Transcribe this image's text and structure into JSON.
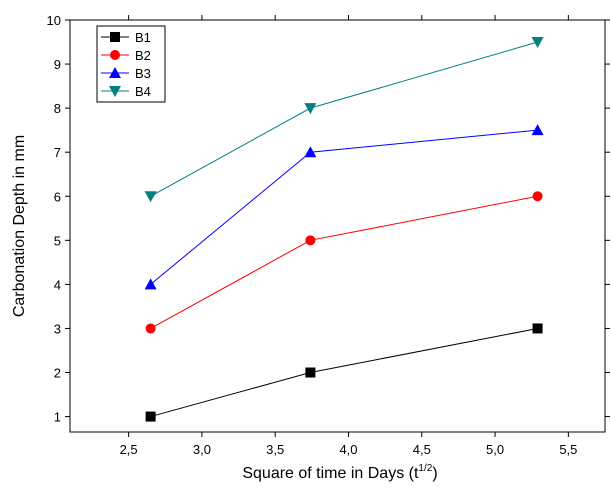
{
  "chart_data": {
    "type": "line",
    "xlabel": "Square of time in Days (t",
    "xlabel_sup": "1/2",
    "xlabel_end": ")",
    "ylabel": "Carbonation Depth in mm",
    "x": [
      2.65,
      3.74,
      5.29
    ],
    "series": [
      {
        "name": "B1",
        "color": "#000000",
        "marker": "square",
        "values": [
          1,
          2,
          3
        ]
      },
      {
        "name": "B2",
        "color": "#ff0000",
        "marker": "circle",
        "values": [
          3,
          5,
          6
        ]
      },
      {
        "name": "B3",
        "color": "#0000ff",
        "marker": "triangle-up",
        "values": [
          4,
          7,
          7.5
        ]
      },
      {
        "name": "B4",
        "color": "#008080",
        "marker": "triangle-down",
        "values": [
          6,
          8,
          9.5
        ]
      }
    ],
    "xlim": [
      2.1,
      5.75
    ],
    "ylim": [
      0.65,
      10
    ],
    "xticks": [
      {
        "value": 2.5,
        "label": "2,5"
      },
      {
        "value": 3.0,
        "label": "3,0"
      },
      {
        "value": 3.5,
        "label": "3,5"
      },
      {
        "value": 4.0,
        "label": "4,0"
      },
      {
        "value": 4.5,
        "label": "4,5"
      },
      {
        "value": 5.0,
        "label": "5,0"
      },
      {
        "value": 5.5,
        "label": "5,5"
      }
    ],
    "yticks": [
      1,
      2,
      3,
      4,
      5,
      6,
      7,
      8,
      9,
      10
    ],
    "legend": "upper-left"
  }
}
